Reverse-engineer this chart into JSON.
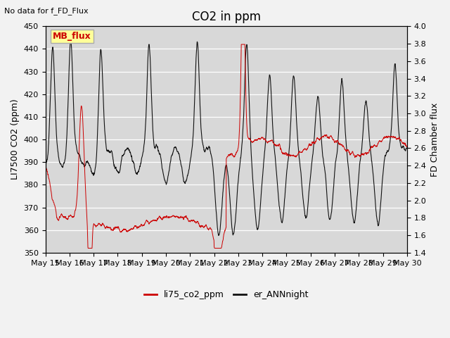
{
  "title": "CO2 in ppm",
  "top_left_text": "No data for f_FD_Flux",
  "ylabel_left": "LI7500 CO2 (ppm)",
  "ylabel_right": "FD Chamber flux",
  "ylim_left": [
    350,
    450
  ],
  "ylim_right": [
    1.4,
    4.0
  ],
  "yticks_left": [
    350,
    360,
    370,
    380,
    390,
    400,
    410,
    420,
    430,
    440,
    450
  ],
  "yticks_right": [
    1.4,
    1.6,
    1.8,
    2.0,
    2.2,
    2.4,
    2.6,
    2.8,
    3.0,
    3.2,
    3.4,
    3.6,
    3.8,
    4.0
  ],
  "xtick_labels": [
    "May 15",
    "May 16",
    "May 17",
    "May 18",
    "May 19",
    "May 20",
    "May 21",
    "May 22",
    "May 23",
    "May 24",
    "May 25",
    "May 26",
    "May 27",
    "May 28",
    "May 29",
    "May 30"
  ],
  "legend_entries": [
    "li75_co2_ppm",
    "er_ANNnight"
  ],
  "legend_colors": [
    "#cc0000",
    "#111111"
  ],
  "box_label": "MB_flux",
  "box_text_color": "#cc0000",
  "box_facecolor": "#ffff99",
  "box_edgecolor": "#aaaaaa",
  "plot_bg_color": "#d8d8d8",
  "fig_bg_color": "#f2f2f2",
  "grid_color": "#ffffff",
  "title_fontsize": 12,
  "label_fontsize": 9,
  "tick_fontsize": 8,
  "n_days": 15
}
